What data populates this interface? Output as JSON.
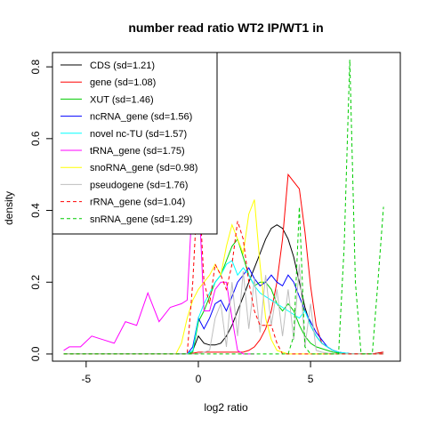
{
  "chart_data": {
    "type": "line",
    "title": "number read ratio WT2 IP/WT1 in",
    "xlabel": "log2 ratio",
    "ylabel": "density",
    "xlim": [
      -6.5,
      9.0
    ],
    "ylim": [
      -0.02,
      0.84
    ],
    "x_ticks": [
      -5,
      0,
      5
    ],
    "y_ticks": [
      0.0,
      0.2,
      0.4,
      0.6,
      0.8
    ],
    "legend_position": "top-left",
    "series": [
      {
        "name": "CDS (sd=1.21)",
        "color": "#000000",
        "dash": false,
        "x": [
          -6,
          -0.5,
          -0.25,
          0,
          0.25,
          0.5,
          0.75,
          1,
          1.25,
          1.5,
          1.75,
          2,
          2.25,
          2.5,
          2.75,
          3,
          3.25,
          3.5,
          3.75,
          4,
          4.25,
          4.5,
          4.75,
          5,
          5.25,
          5.5,
          5.75,
          6,
          6.25,
          6.5,
          6.75,
          7,
          7.25,
          7.5,
          7.75,
          8.25
        ],
        "y": [
          0,
          0,
          0.01,
          0.05,
          0.03,
          0.025,
          0.025,
          0.03,
          0.05,
          0.08,
          0.12,
          0.16,
          0.2,
          0.24,
          0.28,
          0.32,
          0.35,
          0.36,
          0.35,
          0.32,
          0.27,
          0.2,
          0.13,
          0.08,
          0.05,
          0.03,
          0.02,
          0.01,
          0.005,
          0.002,
          0.001,
          0,
          0,
          0,
          0,
          0.005
        ]
      },
      {
        "name": "gene (sd=1.08)",
        "color": "#ff0000",
        "dash": false,
        "x": [
          -6,
          -0.5,
          -0.25,
          0,
          0.25,
          0.5,
          0.75,
          1,
          1.25,
          1.5,
          1.75,
          2,
          2.25,
          2.5,
          2.75,
          3,
          3.25,
          3.5,
          3.75,
          4,
          4.25,
          4.5,
          4.75,
          5,
          5.25,
          5.5,
          5.75,
          6,
          6.25,
          6.5,
          6.75,
          7,
          7.5,
          7.75,
          8.25
        ],
        "y": [
          0,
          0,
          0.002,
          0.005,
          0.005,
          0.005,
          0.005,
          0.005,
          0.005,
          0.005,
          0.005,
          0.005,
          0.01,
          0.02,
          0.04,
          0.07,
          0.12,
          0.2,
          0.32,
          0.5,
          0.48,
          0.46,
          0.34,
          0.19,
          0.08,
          0.03,
          0.02,
          0.01,
          0.005,
          0.002,
          0.001,
          0,
          0,
          0,
          0.005
        ]
      },
      {
        "name": "XUT (sd=1.46)",
        "color": "#00cc00",
        "dash": false,
        "x": [
          -6,
          -0.5,
          -0.25,
          0,
          0.25,
          0.5,
          0.75,
          1,
          1.25,
          1.5,
          1.75,
          2,
          2.25,
          2.5,
          2.75,
          3,
          3.25,
          3.5,
          3.75,
          4,
          4.25,
          4.5,
          4.75,
          5,
          5.25,
          5.5,
          5.75,
          6,
          6.25,
          6.5,
          6.75,
          7,
          7.5,
          8.25
        ],
        "y": [
          0,
          0,
          0.005,
          0.09,
          0.12,
          0.16,
          0.2,
          0.22,
          0.26,
          0.3,
          0.32,
          0.27,
          0.22,
          0.19,
          0.2,
          0.2,
          0.18,
          0.14,
          0.12,
          0.14,
          0.12,
          0.08,
          0.05,
          0.03,
          0.02,
          0.015,
          0.01,
          0.005,
          0.003,
          0.002,
          0.001,
          0,
          0,
          0
        ]
      },
      {
        "name": "ncRNA_gene (sd=1.56)",
        "color": "#0000ff",
        "dash": false,
        "x": [
          -6,
          -0.5,
          -0.25,
          0,
          0.25,
          0.5,
          0.75,
          1,
          1.25,
          1.5,
          1.75,
          2,
          2.25,
          2.5,
          2.75,
          3,
          3.25,
          3.5,
          3.75,
          4,
          4.25,
          4.5,
          4.75,
          5,
          5.25,
          5.5,
          5.75,
          6,
          6.25,
          6.5,
          6.75,
          7,
          7.5,
          8.25
        ],
        "y": [
          0,
          0,
          0.02,
          0.1,
          0.07,
          0.1,
          0.14,
          0.15,
          0.12,
          0.16,
          0.2,
          0.22,
          0.24,
          0.21,
          0.19,
          0.2,
          0.22,
          0.2,
          0.19,
          0.22,
          0.2,
          0.16,
          0.12,
          0.09,
          0.06,
          0.04,
          0.02,
          0.01,
          0.005,
          0.003,
          0.001,
          0,
          0,
          0
        ]
      },
      {
        "name": "novel nc-TU (sd=1.57)",
        "color": "#00ffff",
        "dash": false,
        "x": [
          -6,
          -0.5,
          -0.25,
          0,
          0.25,
          0.5,
          0.75,
          1,
          1.25,
          1.5,
          1.75,
          2,
          2.25,
          2.5,
          2.75,
          3,
          3.25,
          3.5,
          3.75,
          4,
          4.25,
          4.5,
          4.75,
          5,
          5.25,
          5.5,
          5.75,
          6,
          6.25,
          6.5,
          6.75,
          7,
          7.5,
          8.25
        ],
        "y": [
          0,
          0,
          0.01,
          0.1,
          0.14,
          0.17,
          0.2,
          0.22,
          0.25,
          0.26,
          0.22,
          0.24,
          0.22,
          0.19,
          0.17,
          0.16,
          0.15,
          0.14,
          0.13,
          0.12,
          0.11,
          0.1,
          0.12,
          0.08,
          0.05,
          0.03,
          0.02,
          0.01,
          0.005,
          0.003,
          0.001,
          0,
          0,
          0
        ]
      },
      {
        "name": "tRNA_gene (sd=1.75)",
        "color": "#ff00ff",
        "dash": false,
        "x": [
          -6,
          -5.75,
          -5.25,
          -4.75,
          -4.25,
          -3.75,
          -3.25,
          -2.75,
          -2.25,
          -1.75,
          -1.25,
          -0.75,
          -0.5,
          -0.25,
          0,
          0.25,
          0.5,
          0.75,
          1,
          1.25,
          1.5,
          1.75,
          2,
          2.5
        ],
        "y": [
          0.01,
          0.02,
          0.02,
          0.05,
          0.04,
          0.03,
          0.09,
          0.08,
          0.17,
          0.09,
          0.13,
          0.14,
          0.15,
          0.45,
          0.47,
          0.12,
          0.12,
          0.18,
          0.2,
          0.2,
          0.1,
          0.01,
          0,
          0
        ]
      },
      {
        "name": "snoRNA_gene (sd=0.98)",
        "color": "#ffff00",
        "dash": false,
        "x": [
          -6,
          -1,
          -0.75,
          -0.5,
          -0.25,
          0,
          0.25,
          0.5,
          0.75,
          1,
          1.25,
          1.5,
          1.75,
          2,
          2.25,
          2.5,
          2.75,
          3,
          3.25,
          3.5,
          4,
          5,
          8.25
        ],
        "y": [
          0,
          0,
          0.03,
          0.1,
          0.15,
          0.18,
          0.2,
          0.22,
          0.25,
          0.22,
          0.3,
          0.36,
          0.32,
          0.28,
          0.39,
          0.43,
          0.25,
          0.1,
          0.04,
          0.01,
          0,
          0,
          0
        ]
      },
      {
        "name": "pseudogene (sd=1.76)",
        "color": "#bebebe",
        "dash": false,
        "x": [
          -6,
          -0.5,
          0,
          0.5,
          0.75,
          1,
          1.25,
          1.5,
          1.75,
          2,
          2.25,
          2.5,
          2.75,
          3,
          3.25,
          3.5,
          3.75,
          4,
          4.25,
          4.5,
          4.75,
          5,
          5.25,
          5.5,
          6,
          8.25
        ],
        "y": [
          0,
          0,
          0,
          0.01,
          0.1,
          0.14,
          0.02,
          0.2,
          0.05,
          0.23,
          0.07,
          0.21,
          0.06,
          0.22,
          0.08,
          0.18,
          0.05,
          0.18,
          0.04,
          0.25,
          0.02,
          0.14,
          0.01,
          0.005,
          0,
          0
        ]
      },
      {
        "name": "rRNA_gene (sd=1.04)",
        "color": "#ff0000",
        "dash": true,
        "x": [
          -6,
          -0.5,
          -0.25,
          0,
          0.25,
          0.5,
          0.75,
          1,
          1.25,
          1.5,
          1.75,
          2,
          2.25,
          2.5,
          2.75,
          3,
          3.25,
          3.5,
          3.75,
          4,
          8.25
        ],
        "y": [
          0,
          0,
          0.2,
          0.5,
          0.2,
          0.14,
          0.25,
          0.22,
          0.18,
          0.25,
          0.37,
          0.32,
          0.2,
          0.12,
          0.08,
          0.08,
          0.08,
          0.03,
          0,
          0,
          0
        ]
      },
      {
        "name": "snRNA_gene (sd=1.29)",
        "color": "#00cc00",
        "dash": true,
        "x": [
          -6,
          4,
          4.25,
          4.5,
          4.75,
          5,
          5.25,
          5.5,
          5.75,
          6,
          6.25,
          6.5,
          6.75,
          7,
          7.25,
          7.5,
          7.75,
          8,
          8.25
        ],
        "y": [
          0,
          0,
          0.05,
          0.41,
          0.02,
          0,
          0,
          0,
          0,
          0,
          0,
          0.3,
          0.82,
          0.2,
          0,
          0,
          0,
          0.2,
          0.41
        ]
      }
    ]
  }
}
